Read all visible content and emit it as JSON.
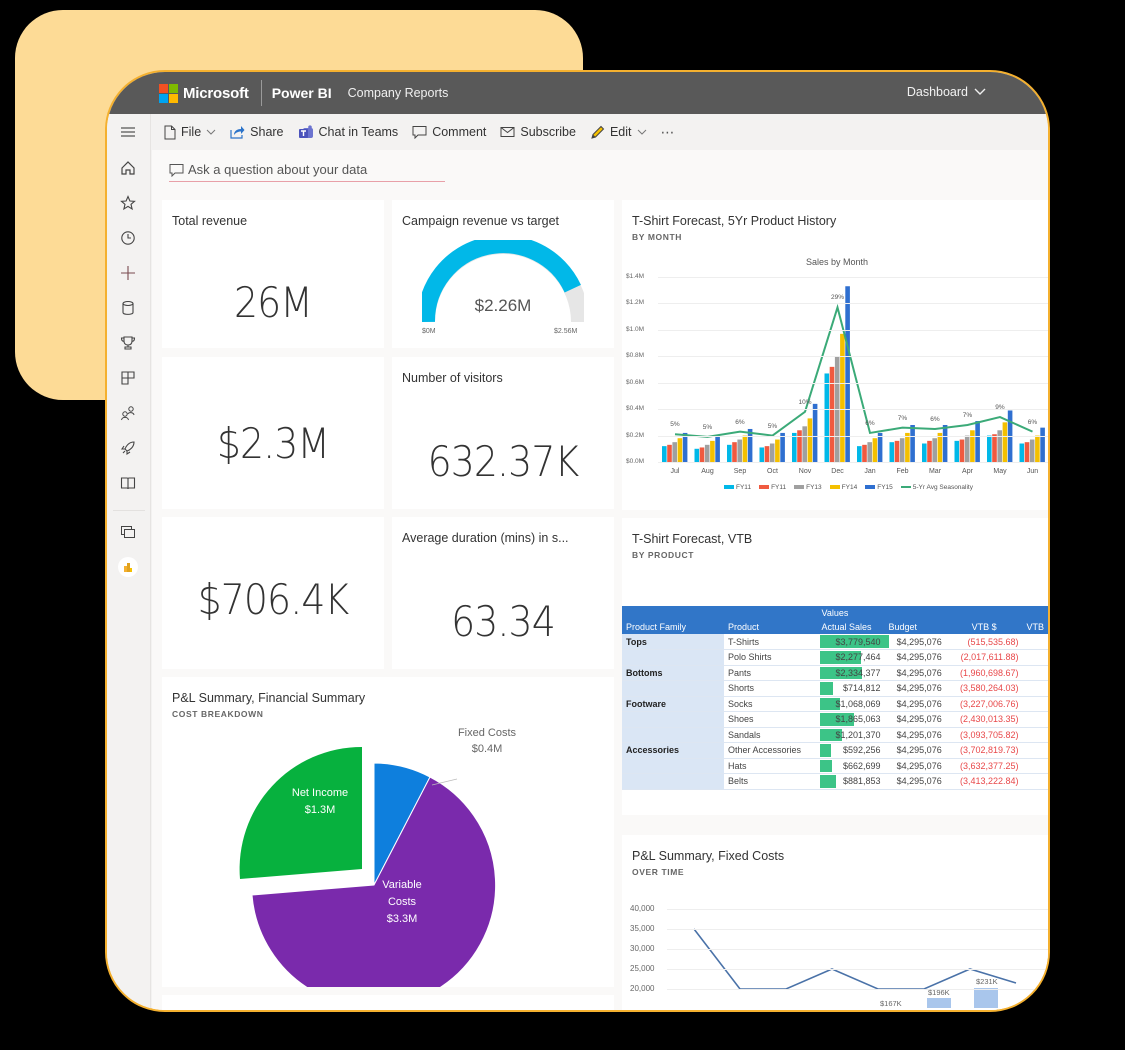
{
  "window": {
    "brand": "Microsoft",
    "product": "Power BI",
    "workspace": "Company Reports",
    "view_selector": "Dashboard",
    "colors": {
      "frame": "#F4B02F",
      "backdrop": "#FDDB96",
      "topbar": "#595959"
    }
  },
  "leftnav": {
    "items": [
      {
        "name": "menu",
        "icon": "hamburger-icon"
      },
      {
        "name": "home",
        "icon": "home-icon"
      },
      {
        "name": "favorites",
        "icon": "star-icon"
      },
      {
        "name": "recent",
        "icon": "clock-icon"
      },
      {
        "name": "create",
        "icon": "plus-icon"
      },
      {
        "name": "datasets",
        "icon": "database-icon"
      },
      {
        "name": "goals",
        "icon": "trophy-icon"
      },
      {
        "name": "apps",
        "icon": "apps-icon"
      },
      {
        "name": "shared",
        "icon": "people-icon"
      },
      {
        "name": "deployment",
        "icon": "rocket-icon"
      },
      {
        "name": "learn",
        "icon": "book-icon"
      },
      {
        "name": "workspaces",
        "icon": "workspaces-icon"
      },
      {
        "name": "my-workspace",
        "icon": "user-avatar-icon"
      }
    ]
  },
  "toolbar": {
    "file": "File",
    "share": "Share",
    "chat": "Chat in Teams",
    "comment": "Comment",
    "subscribe": "Subscribe",
    "edit": "Edit",
    "more": "⋯"
  },
  "qa": {
    "placeholder": "Ask a question about your data"
  },
  "tiles": {
    "total_revenue": {
      "title": "Total revenue",
      "value": "26M"
    },
    "campaign": {
      "title": "Campaign revenue vs target",
      "value": "$2.26M",
      "min": "$0M",
      "max": "$2.56M",
      "fill_ratio": 0.883,
      "color": "#01B8E8"
    },
    "kpi2": {
      "value": "$2.3M"
    },
    "visitors": {
      "title": "Number of visitors",
      "value": "632.37K"
    },
    "kpi3": {
      "value": "$706.4K"
    },
    "duration": {
      "title": "Average duration (mins) in s...",
      "value": "63.34"
    },
    "sales_chart": {
      "title": "T-Shirt Forecast, 5Yr Product History",
      "subtitle": "BY MONTH",
      "chart_title": "Sales by Month"
    },
    "vtb": {
      "title": "T-Shirt Forecast, VTB",
      "subtitle": "BY PRODUCT"
    },
    "pl_pie": {
      "title": "P&L Summary, Financial Summary",
      "subtitle": "COST BREAKDOWN"
    },
    "pl_fixed": {
      "title": "P&L Summary, Fixed Costs",
      "subtitle": "OVER TIME"
    }
  },
  "matrix": {
    "header_group": "Values",
    "columns": [
      "Product Family",
      "Product",
      "Actual Sales",
      "Budget",
      "VTB $",
      "VTB"
    ],
    "rows": [
      {
        "family": "Tops",
        "product": "T-Shirts",
        "actual": "$3,779,540",
        "budget": "$4,295,076",
        "vtb": "(515,535.68)",
        "bar": 0.88
      },
      {
        "family": "",
        "product": "Polo Shirts",
        "actual": "$2,277,464",
        "budget": "$4,295,076",
        "vtb": "(2,017,611.88)",
        "bar": 0.53
      },
      {
        "family": "Bottoms",
        "product": "Pants",
        "actual": "$2,334,377",
        "budget": "$4,295,076",
        "vtb": "(1,960,698.67)",
        "bar": 0.54
      },
      {
        "family": "",
        "product": "Shorts",
        "actual": "$714,812",
        "budget": "$4,295,076",
        "vtb": "(3,580,264.03)",
        "bar": 0.17
      },
      {
        "family": "Footware",
        "product": "Socks",
        "actual": "$1,068,069",
        "budget": "$4,295,076",
        "vtb": "(3,227,006.76)",
        "bar": 0.25
      },
      {
        "family": "",
        "product": "Shoes",
        "actual": "$1,865,063",
        "budget": "$4,295,076",
        "vtb": "(2,430,013.35)",
        "bar": 0.43
      },
      {
        "family": "",
        "product": "Sandals",
        "actual": "$1,201,370",
        "budget": "$4,295,076",
        "vtb": "(3,093,705.82)",
        "bar": 0.28
      },
      {
        "family": "Accessories",
        "product": "Other Accessories",
        "actual": "$592,256",
        "budget": "$4,295,076",
        "vtb": "(3,702,819.73)",
        "bar": 0.14
      },
      {
        "family": "",
        "product": "Hats",
        "actual": "$662,699",
        "budget": "$4,295,076",
        "vtb": "(3,632,377.25)",
        "bar": 0.15
      },
      {
        "family": "",
        "product": "Belts",
        "actual": "$881,853",
        "budget": "$4,295,076",
        "vtb": "(3,413,222.84)",
        "bar": 0.2
      }
    ]
  },
  "chart_data": [
    {
      "type": "bar",
      "title": "Sales by Month",
      "categories": [
        "Jul",
        "Aug",
        "Sep",
        "Oct",
        "Nov",
        "Dec",
        "Jan",
        "Feb",
        "Mar",
        "Apr",
        "May",
        "Jun"
      ],
      "ylim": [
        0,
        1.4
      ],
      "yticks": [
        "$0.0M",
        "$0.2M",
        "$0.4M",
        "$0.6M",
        "$0.8M",
        "$1.0M",
        "$1.2M",
        "$1.4M"
      ],
      "series": [
        {
          "name": "FY11",
          "color": "#01B8E8",
          "values": [
            0.12,
            0.1,
            0.13,
            0.11,
            0.22,
            0.67,
            0.12,
            0.15,
            0.14,
            0.16,
            0.2,
            0.14
          ]
        },
        {
          "name": "FY11",
          "color": "#F05A40",
          "values": [
            0.13,
            0.11,
            0.15,
            0.12,
            0.24,
            0.72,
            0.13,
            0.16,
            0.16,
            0.17,
            0.21,
            0.15
          ]
        },
        {
          "name": "FY13",
          "color": "#A0A0A0",
          "values": [
            0.15,
            0.13,
            0.17,
            0.14,
            0.27,
            0.8,
            0.15,
            0.18,
            0.18,
            0.2,
            0.24,
            0.17
          ]
        },
        {
          "name": "FY14",
          "color": "#F4C000",
          "values": [
            0.18,
            0.16,
            0.2,
            0.17,
            0.33,
            0.97,
            0.18,
            0.22,
            0.22,
            0.24,
            0.3,
            0.2
          ]
        },
        {
          "name": "FY15",
          "color": "#2F6FD0",
          "values": [
            0.22,
            0.2,
            0.25,
            0.22,
            0.44,
            1.33,
            0.22,
            0.28,
            0.28,
            0.31,
            0.39,
            0.26
          ]
        }
      ],
      "line_series": {
        "name": "5-Yr Avg Seasonality",
        "color": "#3BAA78",
        "values": [
          0.21,
          0.19,
          0.23,
          0.2,
          0.38,
          1.17,
          0.22,
          0.26,
          0.25,
          0.28,
          0.34,
          0.23
        ],
        "labels": [
          "5%",
          "5%",
          "6%",
          "5%",
          "10%",
          "29%",
          "6%",
          "7%",
          "6%",
          "7%",
          "9%",
          "6%"
        ]
      },
      "legend_position": "bottom"
    },
    {
      "type": "pie",
      "title": "P&L Summary, Financial Summary",
      "subtitle": "COST BREAKDOWN",
      "slices": [
        {
          "label": "Fixed Costs",
          "value": 0.4,
          "display": "$0.4M",
          "color": "#0E7FDD"
        },
        {
          "label": "Variable Costs",
          "value": 3.3,
          "display": "$3.3M",
          "color": "#7A2AAC"
        },
        {
          "label": "Net Income",
          "value": 1.3,
          "display": "$1.3M",
          "color": "#07B13E"
        }
      ]
    },
    {
      "type": "line",
      "title": "P&L Summary, Fixed Costs",
      "subtitle": "OVER TIME",
      "ylim": [
        20000,
        40000
      ],
      "yticks": [
        "40,000",
        "35,000",
        "30,000",
        "25,000",
        "20,000"
      ],
      "values": [
        35000,
        20000,
        20000,
        25000,
        20000,
        20000,
        25000,
        21500
      ],
      "bar_labels": [
        "$167K",
        "$196K",
        "$231K"
      ]
    }
  ]
}
